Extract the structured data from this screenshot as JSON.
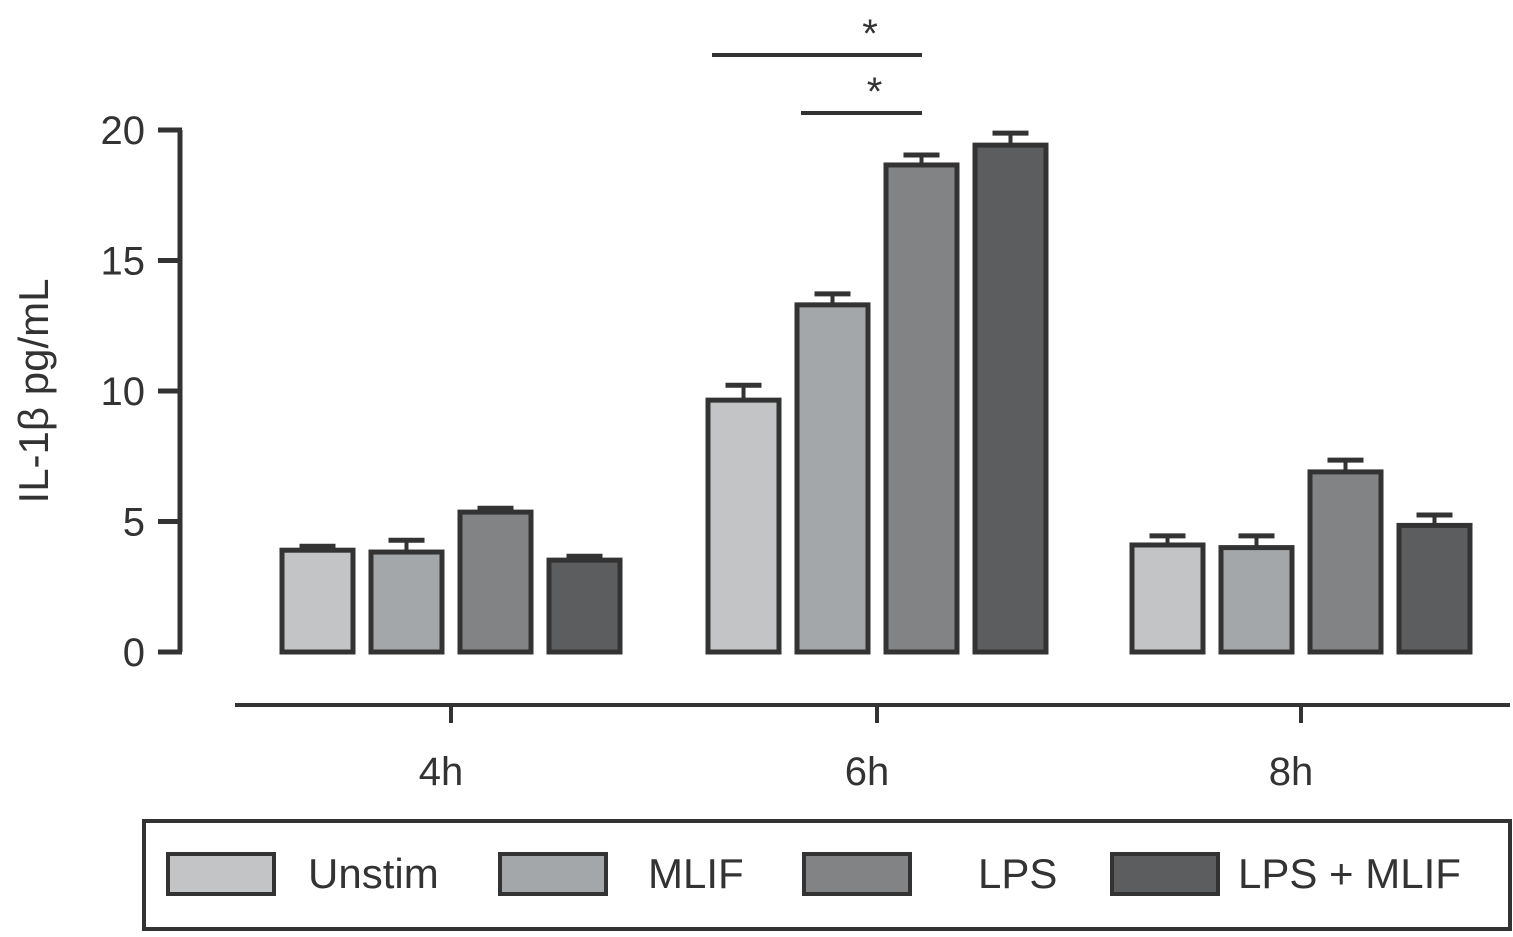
{
  "chart_data": {
    "type": "bar",
    "title": "",
    "xlabel": "",
    "ylabel": "IL-1β pg/mL",
    "ylim": [
      0,
      20
    ],
    "yticks": [
      0,
      5,
      10,
      15,
      20
    ],
    "categories": [
      "4h",
      "6h",
      "8h"
    ],
    "grid": false,
    "legend_position": "bottom",
    "series": [
      {
        "name": "Unstim",
        "color": "#c3c4c6",
        "values": [
          3.9,
          9.65,
          4.1
        ],
        "errors": [
          0.15,
          0.57,
          0.35
        ]
      },
      {
        "name": "MLIF",
        "color": "#a4a7aa",
        "values": [
          3.83,
          13.3,
          4.0
        ],
        "errors": [
          0.45,
          0.42,
          0.45
        ]
      },
      {
        "name": "LPS",
        "color": "#828385",
        "values": [
          5.36,
          18.66,
          6.9
        ],
        "errors": [
          0.15,
          0.38,
          0.45
        ]
      },
      {
        "name": "LPS + MLIF",
        "color": "#5c5d5f",
        "values": [
          3.52,
          19.42,
          4.85
        ],
        "errors": [
          0.15,
          0.46,
          0.4
        ]
      }
    ],
    "annotations": [
      {
        "text": "*",
        "category": "6h",
        "from_series": "Unstim",
        "to_series": "LPS"
      },
      {
        "text": "*",
        "category": "6h",
        "from_series": "MLIF",
        "to_series": "LPS"
      }
    ],
    "outline_color": "#333333"
  }
}
